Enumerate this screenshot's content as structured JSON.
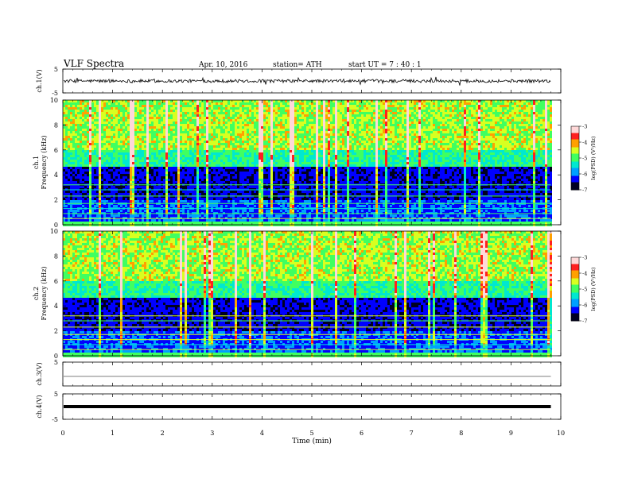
{
  "header": {
    "title": "VLF  Spectra",
    "date": "Apr. 10, 2016",
    "station": "station= ATH",
    "start": "start  UT  =    7  : 40 : 1"
  },
  "colors": {
    "colormap": [
      "#000020",
      "#0000ff",
      "#00a0ff",
      "#00e8d0",
      "#40ff60",
      "#d8ff20",
      "#ffa000",
      "#ff2020",
      "#ffd8d8"
    ],
    "trace": "#000000",
    "axis": "#000000"
  },
  "chart_data": [
    {
      "type": "line",
      "panel": "ch1-waveform",
      "ylabel": "ch.1(V)",
      "ylim": [
        -5,
        5
      ],
      "yticks": [
        "5",
        "-5"
      ],
      "xlim": [
        0,
        10
      ],
      "description_level": "noisy trace around 0 V with spikes",
      "baseline": 0
    },
    {
      "type": "heatmap",
      "panel": "ch1-spectrogram",
      "ylabel": "ch.1\nFrequency  (kHz)",
      "ylim": [
        0,
        10
      ],
      "yticks": [
        "0",
        "2",
        "4",
        "6",
        "8",
        "10"
      ],
      "xlim": [
        0,
        10
      ],
      "data_xmax": 9.8,
      "colorbar": {
        "label": "log(PSD) (V²/Hz)",
        "range": [
          -7,
          -3
        ],
        "ticks": [
          "-3",
          "-4",
          "-5",
          "-6",
          "-7"
        ]
      }
    },
    {
      "type": "heatmap",
      "panel": "ch2-spectrogram",
      "ylabel": "ch.2\nFrequency  (kHz)",
      "ylim": [
        0,
        10
      ],
      "yticks": [
        "0",
        "2",
        "4",
        "6",
        "8",
        "10"
      ],
      "xlim": [
        0,
        10
      ],
      "data_xmax": 9.8,
      "colorbar": {
        "label": "log(PSD) (V²/Hz)",
        "range": [
          -7,
          -3
        ],
        "ticks": [
          "-3",
          "-4",
          "-5",
          "-6",
          "-7"
        ]
      }
    },
    {
      "type": "line",
      "panel": "ch3-waveform",
      "ylabel": "ch.3(V)",
      "ylim": [
        -5,
        5
      ],
      "yticks": [
        "5"
      ],
      "xlim": [
        0,
        10
      ],
      "baseline": 0
    },
    {
      "type": "line",
      "panel": "ch4-waveform",
      "ylabel": "ch.4(V)",
      "ylim": [
        -5,
        5
      ],
      "yticks": [
        "5",
        "-5"
      ],
      "xlim": [
        0,
        10
      ],
      "baseline": 0
    }
  ],
  "xaxis": {
    "label": "Time  (min)",
    "ticks": [
      "0",
      "1",
      "2",
      "3",
      "4",
      "5",
      "6",
      "7",
      "8",
      "9",
      "10"
    ]
  }
}
